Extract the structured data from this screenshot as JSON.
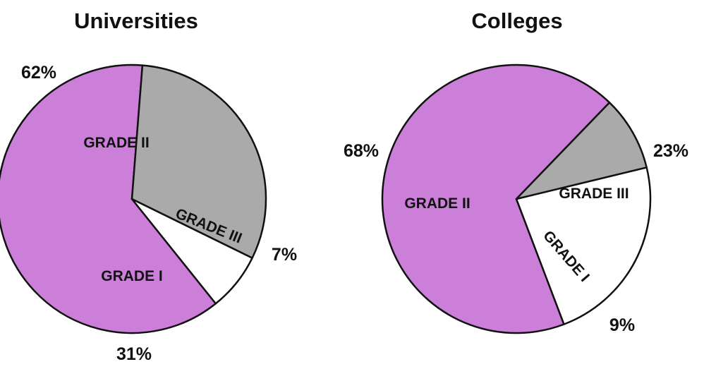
{
  "chart_data": [
    {
      "type": "pie",
      "title": "Universities",
      "slices": [
        {
          "label": "GRADE II",
          "value": 62,
          "value_label": "62%",
          "color": "#cc7fd8"
        },
        {
          "label": "GRADE III",
          "value": 7,
          "value_label": "7%",
          "color": "#ffffff"
        },
        {
          "label": "GRADE I",
          "value": 31,
          "value_label": "31%",
          "color": "#aaaaaa"
        }
      ]
    },
    {
      "type": "pie",
      "title": "Colleges",
      "slices": [
        {
          "label": "GRADE II",
          "value": 68,
          "value_label": "68%",
          "color": "#cc7fd8"
        },
        {
          "label": "GRADE III",
          "value": 23,
          "value_label": "23%",
          "color": "#ffffff"
        },
        {
          "label": "GRADE I",
          "value": 9,
          "value_label": "9%",
          "color": "#aaaaaa"
        }
      ]
    }
  ]
}
